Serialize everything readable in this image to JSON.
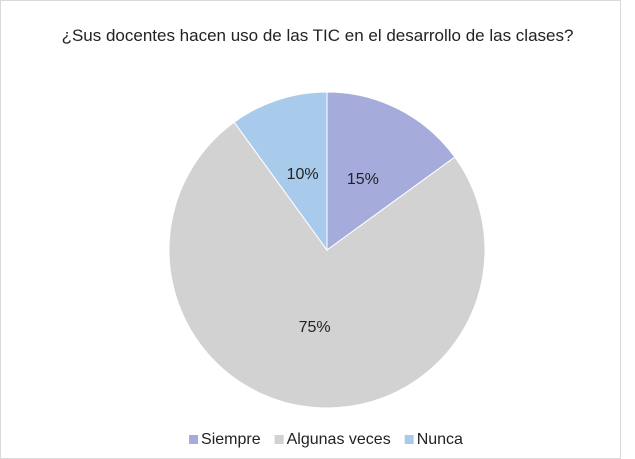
{
  "chart_data": {
    "type": "pie",
    "title": "¿Sus docentes hacen uso de las TIC en el desarrollo de las clases?",
    "categories": [
      "Siempre",
      "Algunas veces",
      "Nunca"
    ],
    "values": [
      15,
      75,
      10
    ],
    "value_labels": [
      "15%",
      "75%",
      "10%"
    ],
    "colors": [
      "#a5acdc",
      "#d2d2d2",
      "#a9cbeb"
    ],
    "legend": "bottom"
  }
}
